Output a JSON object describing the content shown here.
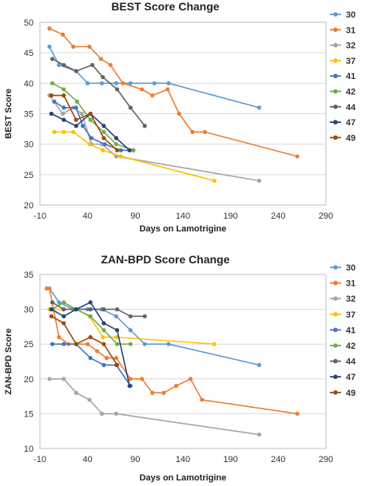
{
  "chart_data": [
    {
      "type": "line",
      "title": "BEST Score Change",
      "xlabel": "Days on Lamotrigine",
      "ylabel": "BEST Score",
      "xlim": [
        -10,
        290
      ],
      "ylim": [
        20,
        50
      ],
      "x_ticks": [
        "-10",
        "40",
        "90",
        "140",
        "190",
        "240",
        "290"
      ],
      "y_ticks": [
        "20",
        "25",
        "30",
        "35",
        "40",
        "45",
        "50"
      ],
      "grid": "horizontal",
      "legend_position": "right",
      "series": [
        {
          "name": "30",
          "color": "#5B9BD5",
          "points": [
            [
              0,
              46
            ],
            [
              10,
              43
            ],
            [
              28,
              42
            ],
            [
              40,
              40
            ],
            [
              55,
              40
            ],
            [
              70,
              40
            ],
            [
              85,
              40
            ],
            [
              110,
              40
            ],
            [
              125,
              40
            ],
            [
              220,
              36
            ]
          ]
        },
        {
          "name": "31",
          "color": "#ED7D31",
          "points": [
            [
              0,
              49
            ],
            [
              14,
              48
            ],
            [
              25,
              46
            ],
            [
              42,
              46
            ],
            [
              54,
              44
            ],
            [
              64,
              43
            ],
            [
              77,
              40
            ],
            [
              97,
              39
            ],
            [
              108,
              38
            ],
            [
              124,
              39
            ],
            [
              136,
              35
            ],
            [
              150,
              32
            ],
            [
              163,
              32
            ],
            [
              260,
              28
            ]
          ]
        },
        {
          "name": "32",
          "color": "#A5A5A5",
          "points": [
            [
              0,
              38
            ],
            [
              14,
              35
            ],
            [
              25,
              36
            ],
            [
              34,
              35
            ],
            [
              44,
              30
            ],
            [
              55,
              30
            ],
            [
              70,
              28
            ],
            [
              220,
              24
            ]
          ]
        },
        {
          "name": "37",
          "color": "#FFC000",
          "points": [
            [
              5,
              32
            ],
            [
              15,
              32
            ],
            [
              25,
              32
            ],
            [
              42,
              30
            ],
            [
              56,
              29
            ],
            [
              75,
              28
            ],
            [
              173,
              24
            ]
          ]
        },
        {
          "name": "41",
          "color": "#4472C4",
          "points": [
            [
              5,
              37
            ],
            [
              15,
              36
            ],
            [
              28,
              36
            ],
            [
              35,
              33
            ],
            [
              44,
              31
            ],
            [
              58,
              30
            ],
            [
              75,
              29
            ],
            [
              88,
              29
            ]
          ]
        },
        {
          "name": "42",
          "color": "#70AD47",
          "points": [
            [
              3,
              40
            ],
            [
              15,
              39
            ],
            [
              29,
              37
            ],
            [
              43,
              34
            ],
            [
              57,
              32
            ],
            [
              70,
              30
            ],
            [
              88,
              29
            ]
          ]
        },
        {
          "name": "44",
          "color": "#636363",
          "points": [
            [
              3,
              44
            ],
            [
              15,
              43
            ],
            [
              28,
              42
            ],
            [
              45,
              43
            ],
            [
              56,
              41
            ],
            [
              71,
              39
            ],
            [
              85,
              36
            ],
            [
              100,
              33
            ]
          ]
        },
        {
          "name": "47",
          "color": "#264478",
          "points": [
            [
              2,
              35
            ],
            [
              15,
              34
            ],
            [
              28,
              33
            ],
            [
              43,
              35
            ],
            [
              57,
              33
            ],
            [
              70,
              31
            ],
            [
              84,
              29
            ]
          ]
        },
        {
          "name": "49",
          "color": "#9E480E",
          "points": [
            [
              2,
              38
            ],
            [
              15,
              38
            ],
            [
              28,
              34
            ],
            [
              43,
              35
            ],
            [
              57,
              31
            ],
            [
              71,
              29
            ]
          ]
        }
      ]
    },
    {
      "type": "line",
      "title": "ZAN-BPD Score Change",
      "xlabel": "Days on Lamotrigine",
      "ylabel": "ZAN-BPD Score",
      "xlim": [
        -10,
        290
      ],
      "ylim": [
        10,
        35
      ],
      "x_ticks": [
        "-10",
        "40",
        "90",
        "140",
        "190",
        "240",
        "290"
      ],
      "y_ticks": [
        "10",
        "15",
        "20",
        "25",
        "30",
        "35"
      ],
      "grid": "horizontal",
      "legend_position": "right",
      "series": [
        {
          "name": "30",
          "color": "#5B9BD5",
          "points": [
            [
              0,
              33
            ],
            [
              10,
              31
            ],
            [
              25,
              30
            ],
            [
              40,
              30
            ],
            [
              55,
              30
            ],
            [
              70,
              29
            ],
            [
              85,
              27
            ],
            [
              100,
              25
            ],
            [
              125,
              25
            ],
            [
              220,
              22
            ]
          ]
        },
        {
          "name": "31",
          "color": "#ED7D31",
          "points": [
            [
              -3,
              33
            ],
            [
              0,
              33
            ],
            [
              10,
              26
            ],
            [
              20,
              25
            ],
            [
              28,
              25
            ],
            [
              40,
              25
            ],
            [
              50,
              24
            ],
            [
              60,
              23
            ],
            [
              70,
              23
            ],
            [
              85,
              20
            ],
            [
              97,
              20
            ],
            [
              108,
              18
            ],
            [
              120,
              18
            ],
            [
              133,
              19
            ],
            [
              148,
              20
            ],
            [
              160,
              17
            ],
            [
              260,
              15
            ]
          ]
        },
        {
          "name": "32",
          "color": "#A5A5A5",
          "points": [
            [
              0,
              20
            ],
            [
              15,
              20
            ],
            [
              28,
              18
            ],
            [
              42,
              17
            ],
            [
              55,
              15
            ],
            [
              70,
              15
            ],
            [
              220,
              12
            ]
          ]
        },
        {
          "name": "37",
          "color": "#FFC000",
          "points": [
            [
              0,
              30
            ],
            [
              14,
              30
            ],
            [
              28,
              30
            ],
            [
              42,
              29
            ],
            [
              56,
              26
            ],
            [
              70,
              26
            ],
            [
              173,
              25
            ]
          ]
        },
        {
          "name": "41",
          "color": "#4472C4",
          "points": [
            [
              3,
              25
            ],
            [
              15,
              25
            ],
            [
              28,
              25
            ],
            [
              43,
              23
            ],
            [
              57,
              22
            ],
            [
              70,
              22
            ],
            [
              85,
              19
            ]
          ]
        },
        {
          "name": "42",
          "color": "#70AD47",
          "points": [
            [
              3,
              30
            ],
            [
              15,
              31
            ],
            [
              28,
              30
            ],
            [
              43,
              29
            ],
            [
              57,
              27
            ],
            [
              71,
              25
            ],
            [
              85,
              25
            ]
          ]
        },
        {
          "name": "44",
          "color": "#636363",
          "points": [
            [
              3,
              31
            ],
            [
              15,
              30
            ],
            [
              28,
              30
            ],
            [
              43,
              30
            ],
            [
              57,
              30
            ],
            [
              71,
              30
            ],
            [
              85,
              29
            ],
            [
              100,
              29
            ]
          ]
        },
        {
          "name": "47",
          "color": "#264478",
          "points": [
            [
              2,
              30
            ],
            [
              15,
              29
            ],
            [
              28,
              30
            ],
            [
              43,
              31
            ],
            [
              57,
              28
            ],
            [
              71,
              27
            ],
            [
              84,
              19
            ]
          ]
        },
        {
          "name": "49",
          "color": "#9E480E",
          "points": [
            [
              2,
              29
            ],
            [
              15,
              28
            ],
            [
              28,
              25
            ],
            [
              43,
              26
            ],
            [
              57,
              25
            ],
            [
              71,
              22
            ]
          ]
        }
      ]
    }
  ]
}
